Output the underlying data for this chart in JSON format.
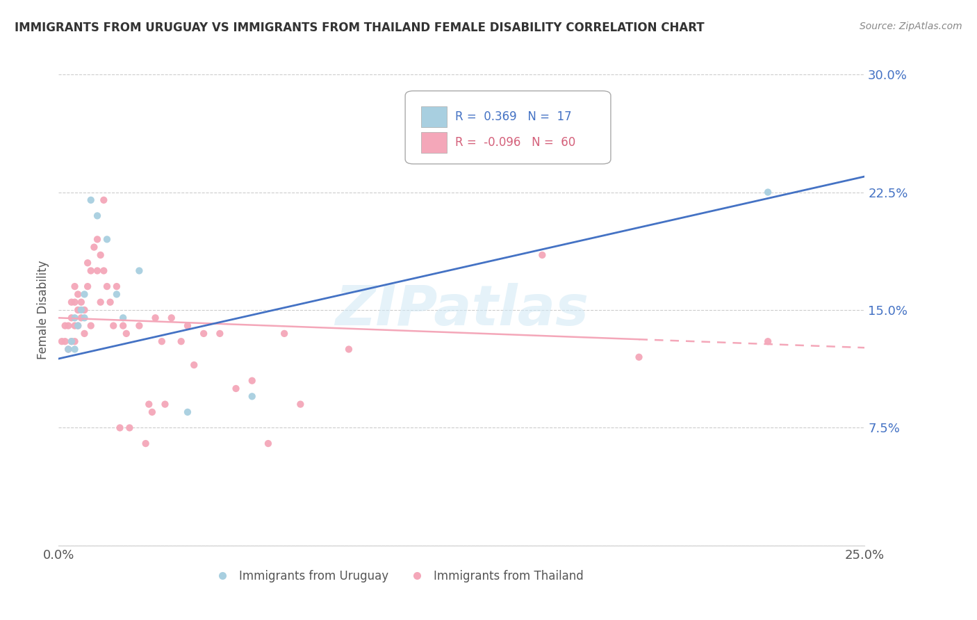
{
  "title": "IMMIGRANTS FROM URUGUAY VS IMMIGRANTS FROM THAILAND FEMALE DISABILITY CORRELATION CHART",
  "source": "Source: ZipAtlas.com",
  "ylabel": "Female Disability",
  "xlim": [
    0.0,
    0.25
  ],
  "ylim": [
    0.0,
    0.3
  ],
  "xticks": [
    0.0,
    0.05,
    0.1,
    0.15,
    0.2,
    0.25
  ],
  "yticks": [
    0.0,
    0.075,
    0.15,
    0.225,
    0.3
  ],
  "xticklabels": [
    "0.0%",
    "",
    "",
    "",
    "",
    "25.0%"
  ],
  "yticklabels": [
    "",
    "7.5%",
    "15.0%",
    "22.5%",
    "30.0%"
  ],
  "uruguay_color": "#a8cfe0",
  "thailand_color": "#f4a7b9",
  "uruguay_R": 0.369,
  "uruguay_N": 17,
  "thailand_R": -0.096,
  "thailand_N": 60,
  "trend_uruguay_color": "#4472c4",
  "trend_thailand_color": "#f4a7b9",
  "watermark": "ZIPatlas",
  "background_color": "#ffffff",
  "grid_color": "#cccccc",
  "legend_box_color_uruguay": "#a8cfe0",
  "legend_box_color_thailand": "#f4a7b9",
  "uruguay_scatter": [
    [
      0.003,
      0.125
    ],
    [
      0.004,
      0.13
    ],
    [
      0.005,
      0.125
    ],
    [
      0.005,
      0.145
    ],
    [
      0.006,
      0.14
    ],
    [
      0.007,
      0.15
    ],
    [
      0.008,
      0.145
    ],
    [
      0.008,
      0.16
    ],
    [
      0.01,
      0.22
    ],
    [
      0.012,
      0.21
    ],
    [
      0.015,
      0.195
    ],
    [
      0.018,
      0.16
    ],
    [
      0.02,
      0.145
    ],
    [
      0.025,
      0.175
    ],
    [
      0.04,
      0.085
    ],
    [
      0.06,
      0.095
    ],
    [
      0.22,
      0.225
    ]
  ],
  "thailand_scatter": [
    [
      0.001,
      0.13
    ],
    [
      0.002,
      0.13
    ],
    [
      0.002,
      0.14
    ],
    [
      0.003,
      0.125
    ],
    [
      0.003,
      0.14
    ],
    [
      0.004,
      0.13
    ],
    [
      0.004,
      0.145
    ],
    [
      0.004,
      0.155
    ],
    [
      0.005,
      0.13
    ],
    [
      0.005,
      0.14
    ],
    [
      0.005,
      0.155
    ],
    [
      0.005,
      0.165
    ],
    [
      0.006,
      0.14
    ],
    [
      0.006,
      0.15
    ],
    [
      0.006,
      0.16
    ],
    [
      0.007,
      0.145
    ],
    [
      0.007,
      0.155
    ],
    [
      0.008,
      0.135
    ],
    [
      0.008,
      0.15
    ],
    [
      0.009,
      0.165
    ],
    [
      0.009,
      0.18
    ],
    [
      0.01,
      0.14
    ],
    [
      0.01,
      0.175
    ],
    [
      0.011,
      0.19
    ],
    [
      0.012,
      0.175
    ],
    [
      0.012,
      0.195
    ],
    [
      0.013,
      0.155
    ],
    [
      0.013,
      0.185
    ],
    [
      0.014,
      0.175
    ],
    [
      0.014,
      0.22
    ],
    [
      0.015,
      0.165
    ],
    [
      0.016,
      0.155
    ],
    [
      0.017,
      0.14
    ],
    [
      0.018,
      0.165
    ],
    [
      0.019,
      0.075
    ],
    [
      0.02,
      0.14
    ],
    [
      0.021,
      0.135
    ],
    [
      0.022,
      0.075
    ],
    [
      0.025,
      0.14
    ],
    [
      0.027,
      0.065
    ],
    [
      0.028,
      0.09
    ],
    [
      0.029,
      0.085
    ],
    [
      0.03,
      0.145
    ],
    [
      0.032,
      0.13
    ],
    [
      0.033,
      0.09
    ],
    [
      0.035,
      0.145
    ],
    [
      0.038,
      0.13
    ],
    [
      0.04,
      0.14
    ],
    [
      0.042,
      0.115
    ],
    [
      0.045,
      0.135
    ],
    [
      0.05,
      0.135
    ],
    [
      0.055,
      0.1
    ],
    [
      0.06,
      0.105
    ],
    [
      0.065,
      0.065
    ],
    [
      0.07,
      0.135
    ],
    [
      0.075,
      0.09
    ],
    [
      0.09,
      0.125
    ],
    [
      0.15,
      0.185
    ],
    [
      0.18,
      0.12
    ],
    [
      0.22,
      0.13
    ]
  ],
  "trend_uru_x0": 0.0,
  "trend_uru_y0": 0.119,
  "trend_uru_x1": 0.25,
  "trend_uru_y1": 0.235,
  "trend_thai_x0": 0.0,
  "trend_thai_y0": 0.145,
  "trend_thai_x1": 0.25,
  "trend_thai_y1": 0.126,
  "trend_thai_solid_end": 0.18
}
